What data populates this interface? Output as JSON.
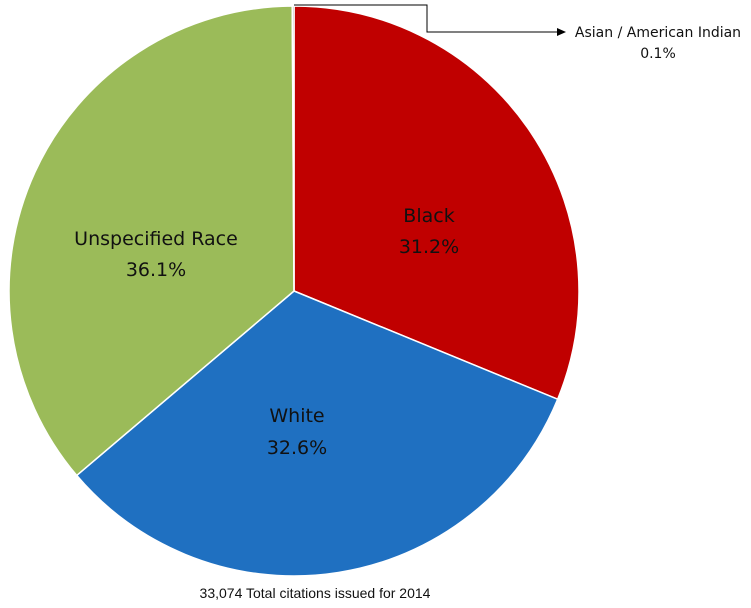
{
  "chart_data": {
    "type": "pie",
    "title": "",
    "start": "12 o'clock",
    "direction": "clockwise",
    "slices": [
      {
        "label": "Black",
        "value": 31.2,
        "value_label": "31.2%",
        "color": "#c00000"
      },
      {
        "label": "White",
        "value": 32.6,
        "value_label": "32.6%",
        "color": "#1f70c1"
      },
      {
        "label": "Unspecified Race",
        "value": 36.1,
        "value_label": "36.1%",
        "color": "#9bbb59"
      },
      {
        "label": "Asian / American Indian",
        "value": 0.1,
        "value_label": "0.1%",
        "color": "#7f7f7f"
      }
    ],
    "footnote": "33,074 Total citations issued for 2014"
  }
}
